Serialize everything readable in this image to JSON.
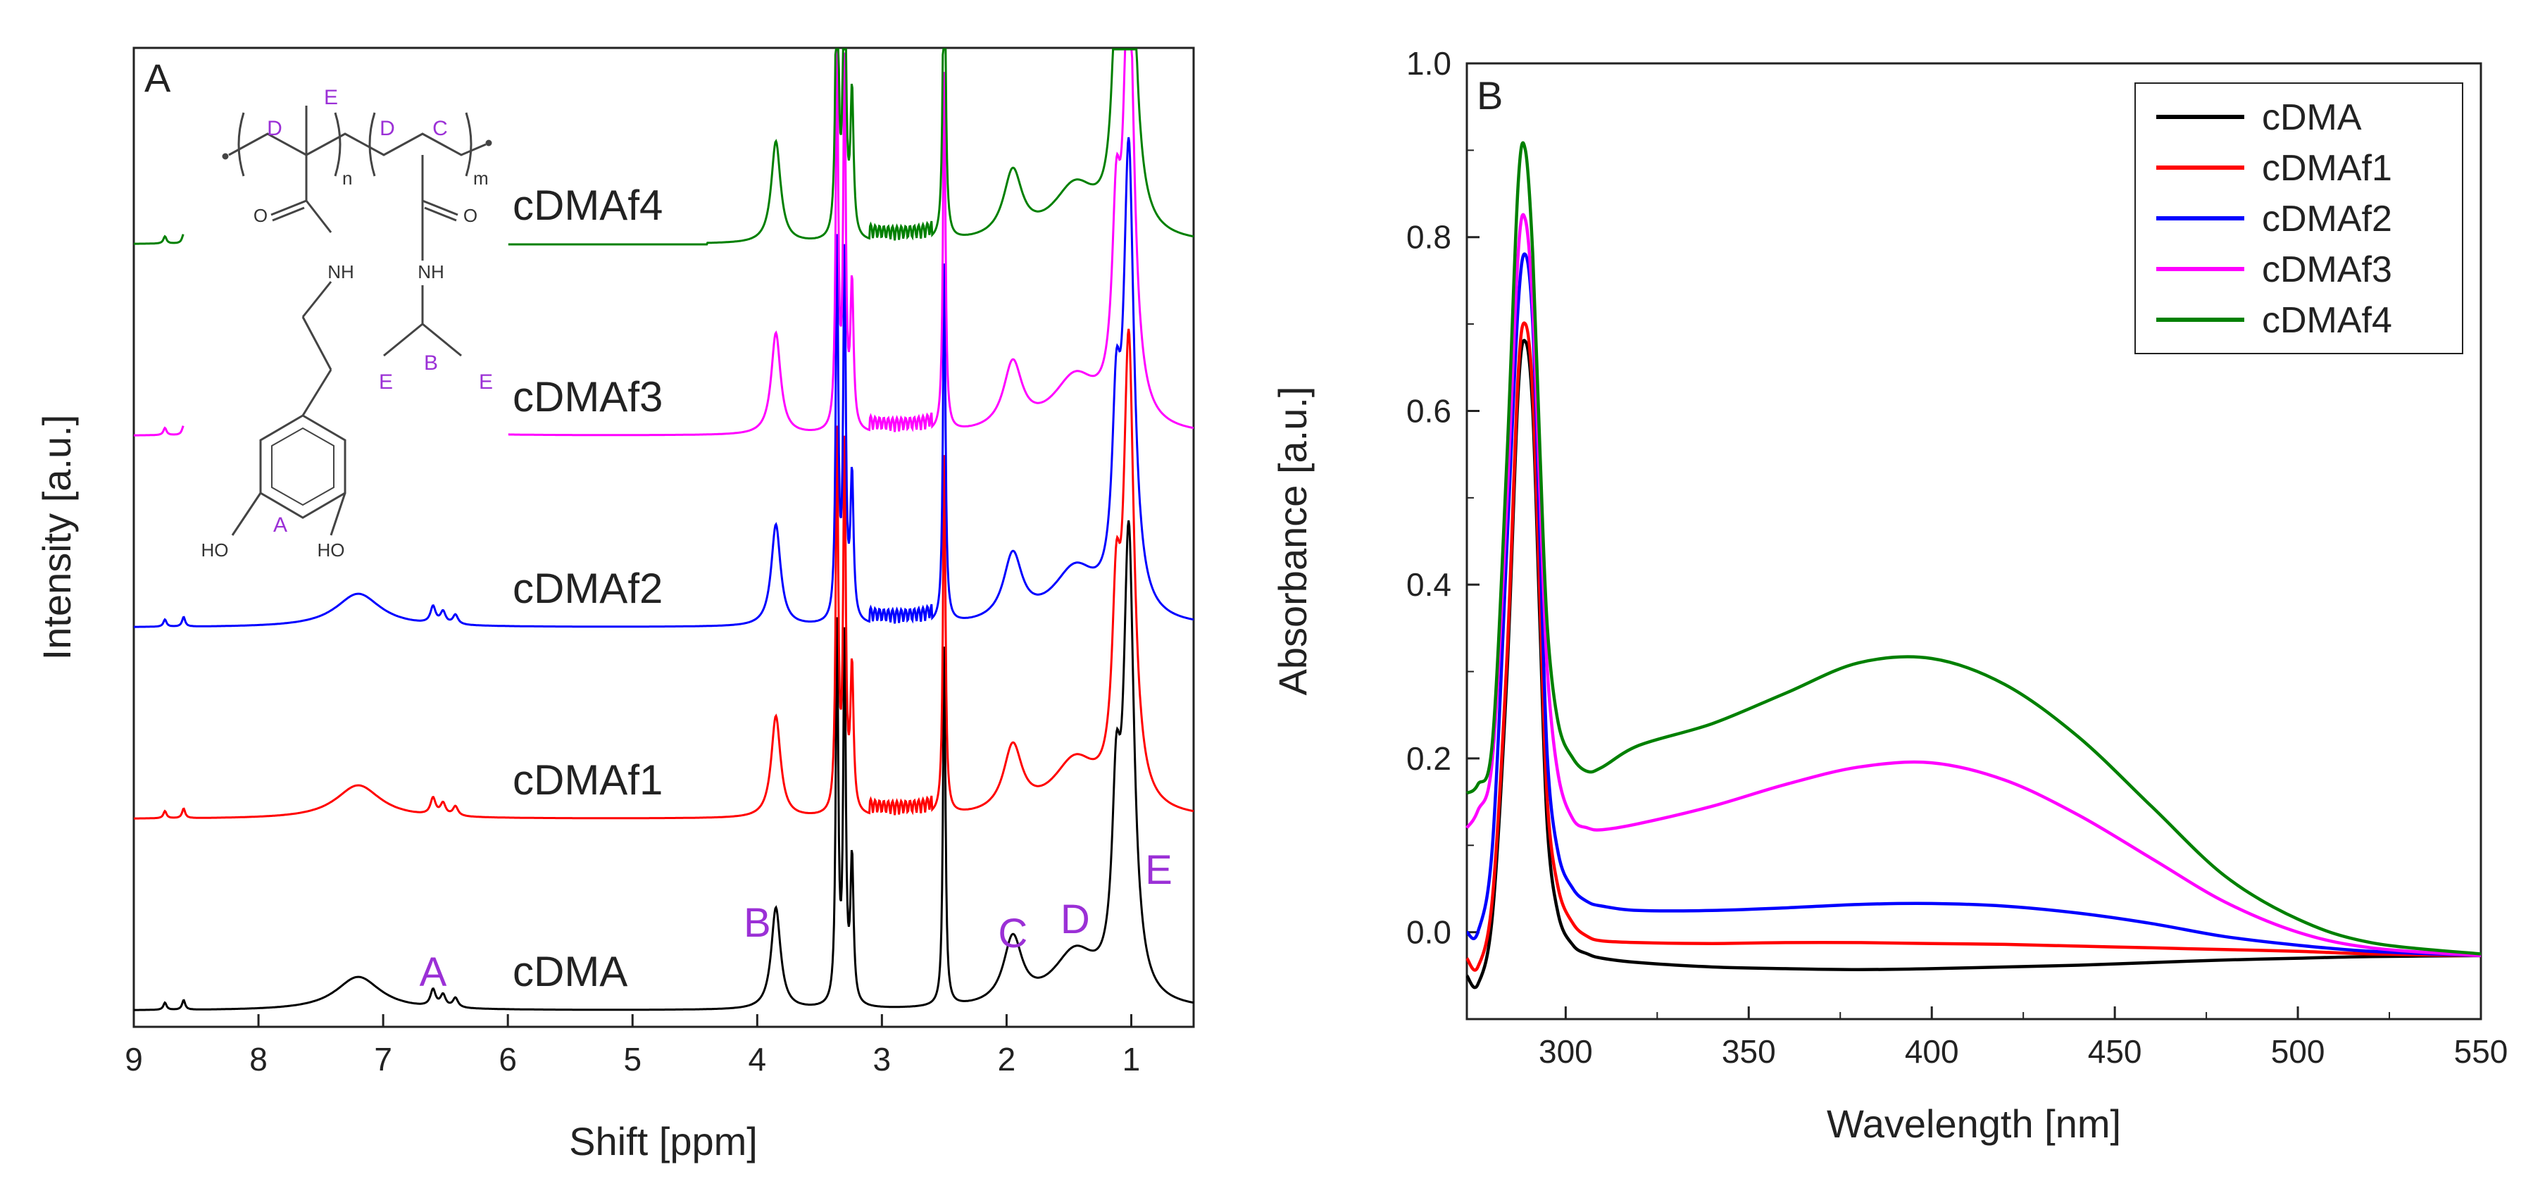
{
  "chart_data": [
    {
      "panel": "A",
      "type": "line",
      "title": "",
      "xlabel": "Shift [ppm]",
      "ylabel": "Intensity [a.u.]",
      "xlim": [
        9,
        0.5
      ],
      "x_ticks": [
        "9",
        "8",
        "7",
        "6",
        "5",
        "4",
        "3",
        "2",
        "1"
      ],
      "series": [
        {
          "name": "cDMA",
          "color": "#000000",
          "offset": 0.0
        },
        {
          "name": "cDMAf1",
          "color": "#ff0000",
          "offset": 1.0
        },
        {
          "name": "cDMAf2",
          "color": "#0000ff",
          "offset": 2.0
        },
        {
          "name": "cDMAf3",
          "color": "#ff00ff",
          "offset": 3.0
        },
        {
          "name": "cDMAf4",
          "color": "#008000",
          "offset": 4.0
        }
      ],
      "peaks_ppm": {
        "aromatic": 7.2,
        "A": 6.6,
        "B": 3.85,
        "solvent_1": 3.33,
        "solvent_2": 2.5,
        "C": 1.95,
        "D": 1.45,
        "E": 1.02
      },
      "peak_labels": [
        {
          "text": "A",
          "ppm": 6.6
        },
        {
          "text": "B",
          "ppm": 4.0
        },
        {
          "text": "C",
          "ppm": 1.95
        },
        {
          "text": "D",
          "ppm": 1.45
        },
        {
          "text": "E",
          "ppm": 0.78
        }
      ],
      "structure_labels": {
        "ring": "A",
        "methine": "B",
        "backbone_1": "C",
        "backbone_2": "D",
        "methyl_1": "E",
        "methyl_2": "E",
        "methyl_3": "E",
        "sub_n": "n",
        "sub_m": "m",
        "atom_o1": "O",
        "atom_o2": "O",
        "atom_nh1": "NH",
        "atom_nh2": "NH",
        "atom_ho1": "HO",
        "atom_ho2": "HO"
      }
    },
    {
      "panel": "B",
      "type": "line",
      "title": "",
      "xlabel": "Wavelength [nm]",
      "ylabel": "Absorbance [a.u.]",
      "xlim": [
        273,
        550
      ],
      "ylim": [
        -0.1,
        1.0
      ],
      "x_ticks": [
        "300",
        "350",
        "400",
        "450",
        "500",
        "550"
      ],
      "y_ticks": [
        "0.0",
        "0.2",
        "0.4",
        "0.6",
        "0.8",
        "1.0"
      ],
      "legend": "top-right",
      "series": [
        {
          "name": "cDMA",
          "color": "#000000",
          "x": [
            273,
            276,
            280,
            284,
            287,
            289,
            291,
            293,
            295,
            298,
            302,
            306,
            310,
            320,
            340,
            360,
            380,
            400,
            420,
            440,
            460,
            480,
            500,
            520,
            550
          ],
          "y": [
            -0.05,
            -0.06,
            0.02,
            0.3,
            0.62,
            0.68,
            0.6,
            0.35,
            0.12,
            0.02,
            -0.015,
            -0.025,
            -0.03,
            -0.035,
            -0.04,
            -0.042,
            -0.043,
            -0.042,
            -0.04,
            -0.038,
            -0.035,
            -0.032,
            -0.03,
            -0.028,
            -0.027
          ]
        },
        {
          "name": "cDMAf1",
          "color": "#ff0000",
          "x": [
            273,
            276,
            280,
            284,
            287,
            289,
            291,
            293,
            295,
            298,
            302,
            306,
            310,
            320,
            340,
            360,
            380,
            400,
            420,
            440,
            460,
            480,
            500,
            520,
            550
          ],
          "y": [
            -0.03,
            -0.04,
            0.04,
            0.32,
            0.64,
            0.7,
            0.62,
            0.38,
            0.15,
            0.05,
            0.01,
            -0.005,
            -0.01,
            -0.012,
            -0.013,
            -0.012,
            -0.012,
            -0.013,
            -0.014,
            -0.016,
            -0.018,
            -0.02,
            -0.022,
            -0.025,
            -0.027
          ]
        },
        {
          "name": "cDMAf2",
          "color": "#0000ff",
          "x": [
            273,
            276,
            280,
            284,
            287,
            289,
            291,
            293,
            295,
            298,
            302,
            306,
            310,
            320,
            340,
            360,
            380,
            400,
            420,
            440,
            460,
            480,
            500,
            520,
            550
          ],
          "y": [
            0.0,
            0.0,
            0.1,
            0.45,
            0.72,
            0.78,
            0.7,
            0.45,
            0.2,
            0.09,
            0.05,
            0.035,
            0.03,
            0.025,
            0.025,
            0.028,
            0.032,
            0.033,
            0.03,
            0.022,
            0.01,
            -0.005,
            -0.015,
            -0.022,
            -0.027
          ]
        },
        {
          "name": "cDMAf3",
          "color": "#ff00ff",
          "x": [
            273,
            276,
            280,
            284,
            287,
            289,
            291,
            293,
            295,
            298,
            302,
            306,
            310,
            320,
            340,
            360,
            380,
            400,
            420,
            440,
            460,
            480,
            500,
            520,
            550
          ],
          "y": [
            0.12,
            0.14,
            0.2,
            0.5,
            0.78,
            0.82,
            0.72,
            0.5,
            0.3,
            0.18,
            0.13,
            0.12,
            0.118,
            0.125,
            0.145,
            0.17,
            0.19,
            0.195,
            0.175,
            0.135,
            0.085,
            0.035,
            0.0,
            -0.018,
            -0.027
          ]
        },
        {
          "name": "cDMAf4",
          "color": "#008000",
          "x": [
            273,
            276,
            280,
            284,
            287,
            289,
            291,
            293,
            295,
            298,
            302,
            306,
            310,
            320,
            340,
            360,
            380,
            400,
            420,
            440,
            460,
            480,
            500,
            520,
            550
          ],
          "y": [
            0.16,
            0.17,
            0.22,
            0.55,
            0.86,
            0.9,
            0.78,
            0.55,
            0.35,
            0.24,
            0.2,
            0.185,
            0.19,
            0.215,
            0.24,
            0.275,
            0.31,
            0.315,
            0.285,
            0.225,
            0.145,
            0.065,
            0.015,
            -0.012,
            -0.025
          ]
        }
      ]
    }
  ]
}
